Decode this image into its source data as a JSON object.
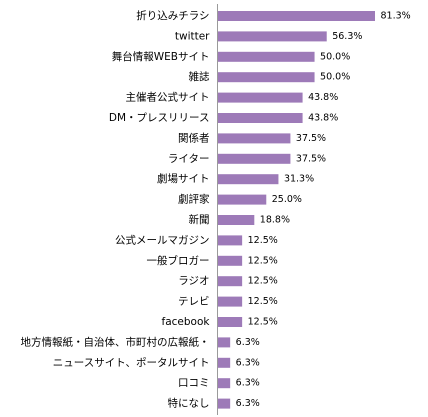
{
  "chart_data": {
    "type": "bar",
    "orientation": "horizontal",
    "categories": [
      "折り込みチラシ",
      "twitter",
      "舞台情報WEBサイト",
      "雑誌",
      "主催者公式サイト",
      "DM・プレスリリース",
      "関係者",
      "ライター",
      "劇場サイト",
      "劇評家",
      "新聞",
      "公式メールマガジン",
      "一般ブロガー",
      "ラジオ",
      "テレビ",
      "facebook",
      "地方情報紙・自治体、市町村の広報紙・",
      "ニュースサイト、ポータルサイト",
      "口コミ",
      "特になし"
    ],
    "values": [
      81.3,
      56.3,
      50.0,
      50.0,
      43.8,
      43.8,
      37.5,
      37.5,
      31.3,
      25.0,
      18.8,
      12.5,
      12.5,
      12.5,
      12.5,
      12.5,
      6.3,
      6.3,
      6.3,
      6.3
    ],
    "value_labels": [
      "81.3%",
      "56.3%",
      "50.0%",
      "50.0%",
      "43.8%",
      "43.8%",
      "37.5%",
      "37.5%",
      "31.3%",
      "25.0%",
      "18.8%",
      "12.5%",
      "12.5%",
      "12.5%",
      "12.5%",
      "12.5%",
      "6.3%",
      "6.3%",
      "6.3%",
      "6.3%"
    ],
    "xlim": [
      0,
      100
    ],
    "grid": false,
    "legend": "none",
    "bar_color": "#9d7ab8",
    "axis_color": "#9a9a9a"
  }
}
